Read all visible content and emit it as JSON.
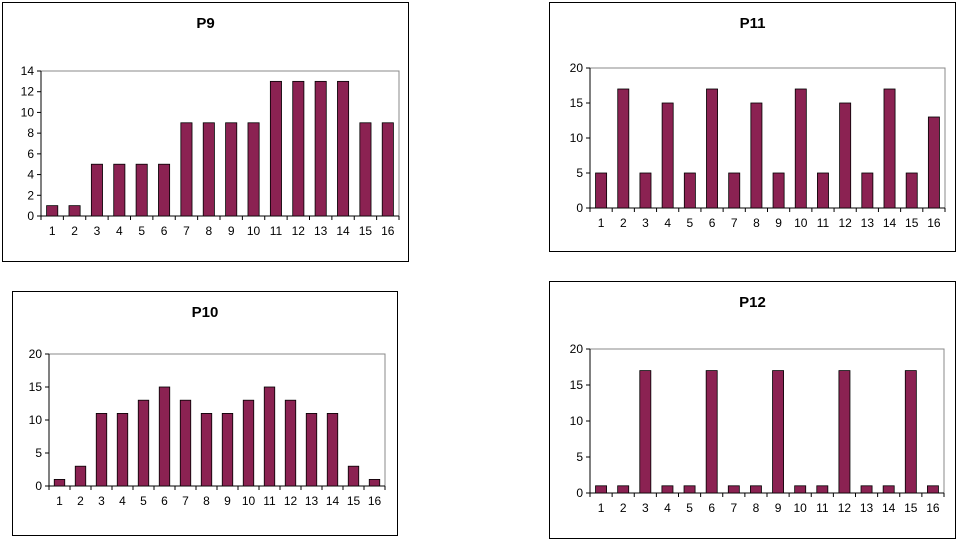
{
  "colors": {
    "bar": "#8b2252",
    "bar_edge": "#000000",
    "frame": "#000000",
    "plot_bg": "#ffffff"
  },
  "chart_data": [
    {
      "id": "p9",
      "type": "bar",
      "title": "P9",
      "categories": [
        "1",
        "2",
        "3",
        "4",
        "5",
        "6",
        "7",
        "8",
        "9",
        "10",
        "11",
        "12",
        "13",
        "14",
        "15",
        "16"
      ],
      "values": [
        1,
        1,
        5,
        5,
        5,
        5,
        9,
        9,
        9,
        9,
        13,
        13,
        13,
        13,
        9,
        9
      ],
      "ylim": [
        0,
        14
      ],
      "yticks": [
        0,
        2,
        4,
        6,
        8,
        10,
        12,
        14
      ],
      "xlabel": "",
      "ylabel": "",
      "grid": false,
      "legend": "none"
    },
    {
      "id": "p11",
      "type": "bar",
      "title": "P11",
      "categories": [
        "1",
        "2",
        "3",
        "4",
        "5",
        "6",
        "7",
        "8",
        "9",
        "10",
        "11",
        "12",
        "13",
        "14",
        "15",
        "16"
      ],
      "values": [
        5,
        17,
        5,
        15,
        5,
        17,
        5,
        15,
        5,
        17,
        5,
        15,
        5,
        17,
        5,
        13
      ],
      "ylim": [
        0,
        20
      ],
      "yticks": [
        0,
        5,
        10,
        15,
        20
      ],
      "xlabel": "",
      "ylabel": "",
      "grid": false,
      "legend": "none"
    },
    {
      "id": "p10",
      "type": "bar",
      "title": "P10",
      "categories": [
        "1",
        "2",
        "3",
        "4",
        "5",
        "6",
        "7",
        "8",
        "9",
        "10",
        "11",
        "12",
        "13",
        "14",
        "15",
        "16"
      ],
      "values": [
        1,
        3,
        11,
        11,
        13,
        15,
        13,
        11,
        11,
        13,
        15,
        13,
        11,
        11,
        3,
        1
      ],
      "ylim": [
        0,
        20
      ],
      "yticks": [
        0,
        5,
        10,
        15,
        20
      ],
      "xlabel": "",
      "ylabel": "",
      "grid": false,
      "legend": "none"
    },
    {
      "id": "p12",
      "type": "bar",
      "title": "P12",
      "categories": [
        "1",
        "2",
        "3",
        "4",
        "5",
        "6",
        "7",
        "8",
        "9",
        "10",
        "11",
        "12",
        "13",
        "14",
        "15",
        "16"
      ],
      "values": [
        1,
        1,
        17,
        1,
        1,
        17,
        1,
        1,
        17,
        1,
        1,
        17,
        1,
        1,
        17,
        1
      ],
      "ylim": [
        0,
        20
      ],
      "yticks": [
        0,
        5,
        10,
        15,
        20
      ],
      "xlabel": "",
      "ylabel": "",
      "grid": false,
      "legend": "none"
    }
  ]
}
